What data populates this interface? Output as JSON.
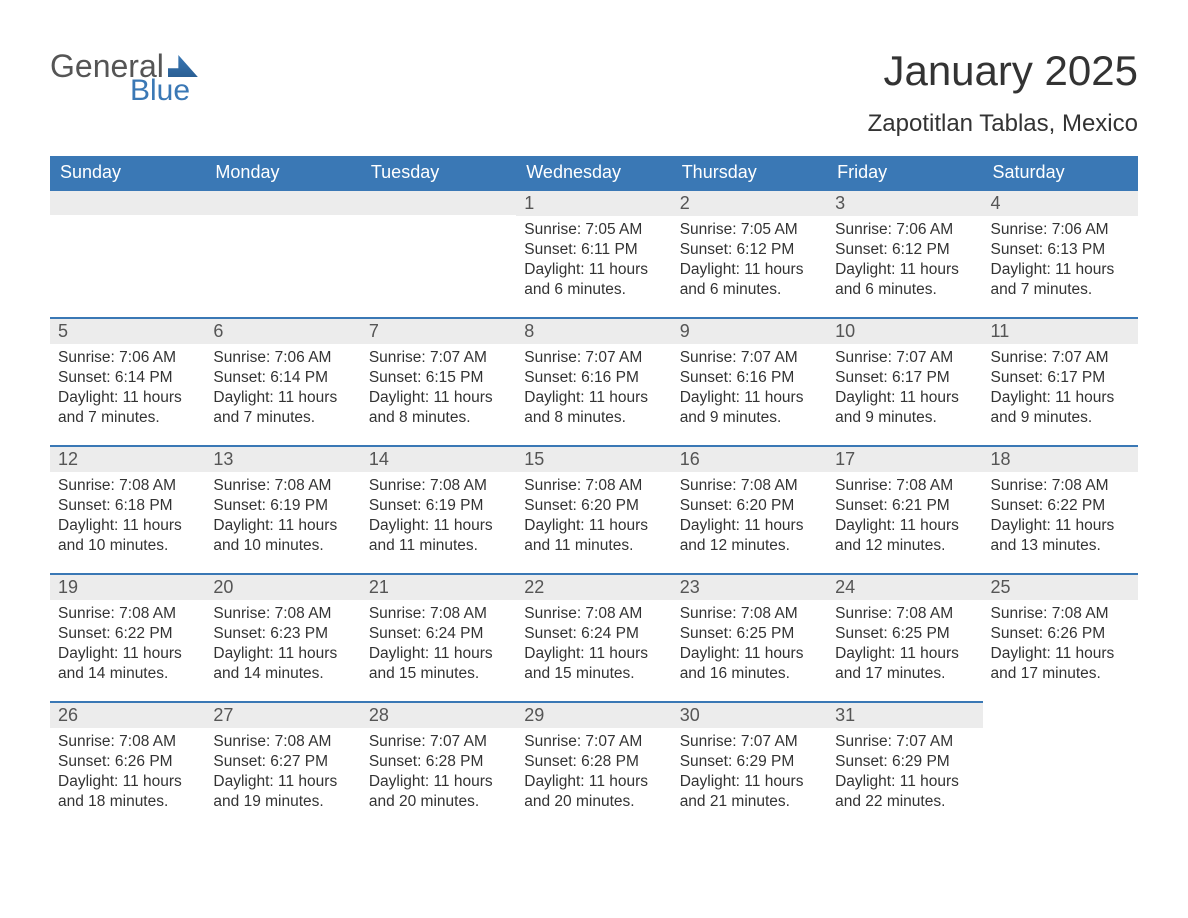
{
  "colors": {
    "accent": "#3a78b5",
    "header_bg": "#3a78b5",
    "header_text": "#ffffff",
    "daynum_bg": "#ececec",
    "daynum_text": "#555555",
    "body_text": "#333333",
    "page_bg": "#ffffff"
  },
  "logo": {
    "word1": "General",
    "word2": "Blue"
  },
  "title": "January 2025",
  "location": "Zapotitlan Tablas, Mexico",
  "weekdays": [
    "Sunday",
    "Monday",
    "Tuesday",
    "Wednesday",
    "Thursday",
    "Friday",
    "Saturday"
  ],
  "labels": {
    "sunrise": "Sunrise:",
    "sunset": "Sunset:",
    "daylight": "Daylight:"
  },
  "weeks": [
    [
      null,
      null,
      null,
      {
        "n": "1",
        "sunrise": "7:05 AM",
        "sunset": "6:11 PM",
        "daylight": "11 hours and 6 minutes."
      },
      {
        "n": "2",
        "sunrise": "7:05 AM",
        "sunset": "6:12 PM",
        "daylight": "11 hours and 6 minutes."
      },
      {
        "n": "3",
        "sunrise": "7:06 AM",
        "sunset": "6:12 PM",
        "daylight": "11 hours and 6 minutes."
      },
      {
        "n": "4",
        "sunrise": "7:06 AM",
        "sunset": "6:13 PM",
        "daylight": "11 hours and 7 minutes."
      }
    ],
    [
      {
        "n": "5",
        "sunrise": "7:06 AM",
        "sunset": "6:14 PM",
        "daylight": "11 hours and 7 minutes."
      },
      {
        "n": "6",
        "sunrise": "7:06 AM",
        "sunset": "6:14 PM",
        "daylight": "11 hours and 7 minutes."
      },
      {
        "n": "7",
        "sunrise": "7:07 AM",
        "sunset": "6:15 PM",
        "daylight": "11 hours and 8 minutes."
      },
      {
        "n": "8",
        "sunrise": "7:07 AM",
        "sunset": "6:16 PM",
        "daylight": "11 hours and 8 minutes."
      },
      {
        "n": "9",
        "sunrise": "7:07 AM",
        "sunset": "6:16 PM",
        "daylight": "11 hours and 9 minutes."
      },
      {
        "n": "10",
        "sunrise": "7:07 AM",
        "sunset": "6:17 PM",
        "daylight": "11 hours and 9 minutes."
      },
      {
        "n": "11",
        "sunrise": "7:07 AM",
        "sunset": "6:17 PM",
        "daylight": "11 hours and 9 minutes."
      }
    ],
    [
      {
        "n": "12",
        "sunrise": "7:08 AM",
        "sunset": "6:18 PM",
        "daylight": "11 hours and 10 minutes."
      },
      {
        "n": "13",
        "sunrise": "7:08 AM",
        "sunset": "6:19 PM",
        "daylight": "11 hours and 10 minutes."
      },
      {
        "n": "14",
        "sunrise": "7:08 AM",
        "sunset": "6:19 PM",
        "daylight": "11 hours and 11 minutes."
      },
      {
        "n": "15",
        "sunrise": "7:08 AM",
        "sunset": "6:20 PM",
        "daylight": "11 hours and 11 minutes."
      },
      {
        "n": "16",
        "sunrise": "7:08 AM",
        "sunset": "6:20 PM",
        "daylight": "11 hours and 12 minutes."
      },
      {
        "n": "17",
        "sunrise": "7:08 AM",
        "sunset": "6:21 PM",
        "daylight": "11 hours and 12 minutes."
      },
      {
        "n": "18",
        "sunrise": "7:08 AM",
        "sunset": "6:22 PM",
        "daylight": "11 hours and 13 minutes."
      }
    ],
    [
      {
        "n": "19",
        "sunrise": "7:08 AM",
        "sunset": "6:22 PM",
        "daylight": "11 hours and 14 minutes."
      },
      {
        "n": "20",
        "sunrise": "7:08 AM",
        "sunset": "6:23 PM",
        "daylight": "11 hours and 14 minutes."
      },
      {
        "n": "21",
        "sunrise": "7:08 AM",
        "sunset": "6:24 PM",
        "daylight": "11 hours and 15 minutes."
      },
      {
        "n": "22",
        "sunrise": "7:08 AM",
        "sunset": "6:24 PM",
        "daylight": "11 hours and 15 minutes."
      },
      {
        "n": "23",
        "sunrise": "7:08 AM",
        "sunset": "6:25 PM",
        "daylight": "11 hours and 16 minutes."
      },
      {
        "n": "24",
        "sunrise": "7:08 AM",
        "sunset": "6:25 PM",
        "daylight": "11 hours and 17 minutes."
      },
      {
        "n": "25",
        "sunrise": "7:08 AM",
        "sunset": "6:26 PM",
        "daylight": "11 hours and 17 minutes."
      }
    ],
    [
      {
        "n": "26",
        "sunrise": "7:08 AM",
        "sunset": "6:26 PM",
        "daylight": "11 hours and 18 minutes."
      },
      {
        "n": "27",
        "sunrise": "7:08 AM",
        "sunset": "6:27 PM",
        "daylight": "11 hours and 19 minutes."
      },
      {
        "n": "28",
        "sunrise": "7:07 AM",
        "sunset": "6:28 PM",
        "daylight": "11 hours and 20 minutes."
      },
      {
        "n": "29",
        "sunrise": "7:07 AM",
        "sunset": "6:28 PM",
        "daylight": "11 hours and 20 minutes."
      },
      {
        "n": "30",
        "sunrise": "7:07 AM",
        "sunset": "6:29 PM",
        "daylight": "11 hours and 21 minutes."
      },
      {
        "n": "31",
        "sunrise": "7:07 AM",
        "sunset": "6:29 PM",
        "daylight": "11 hours and 22 minutes."
      },
      null
    ]
  ]
}
